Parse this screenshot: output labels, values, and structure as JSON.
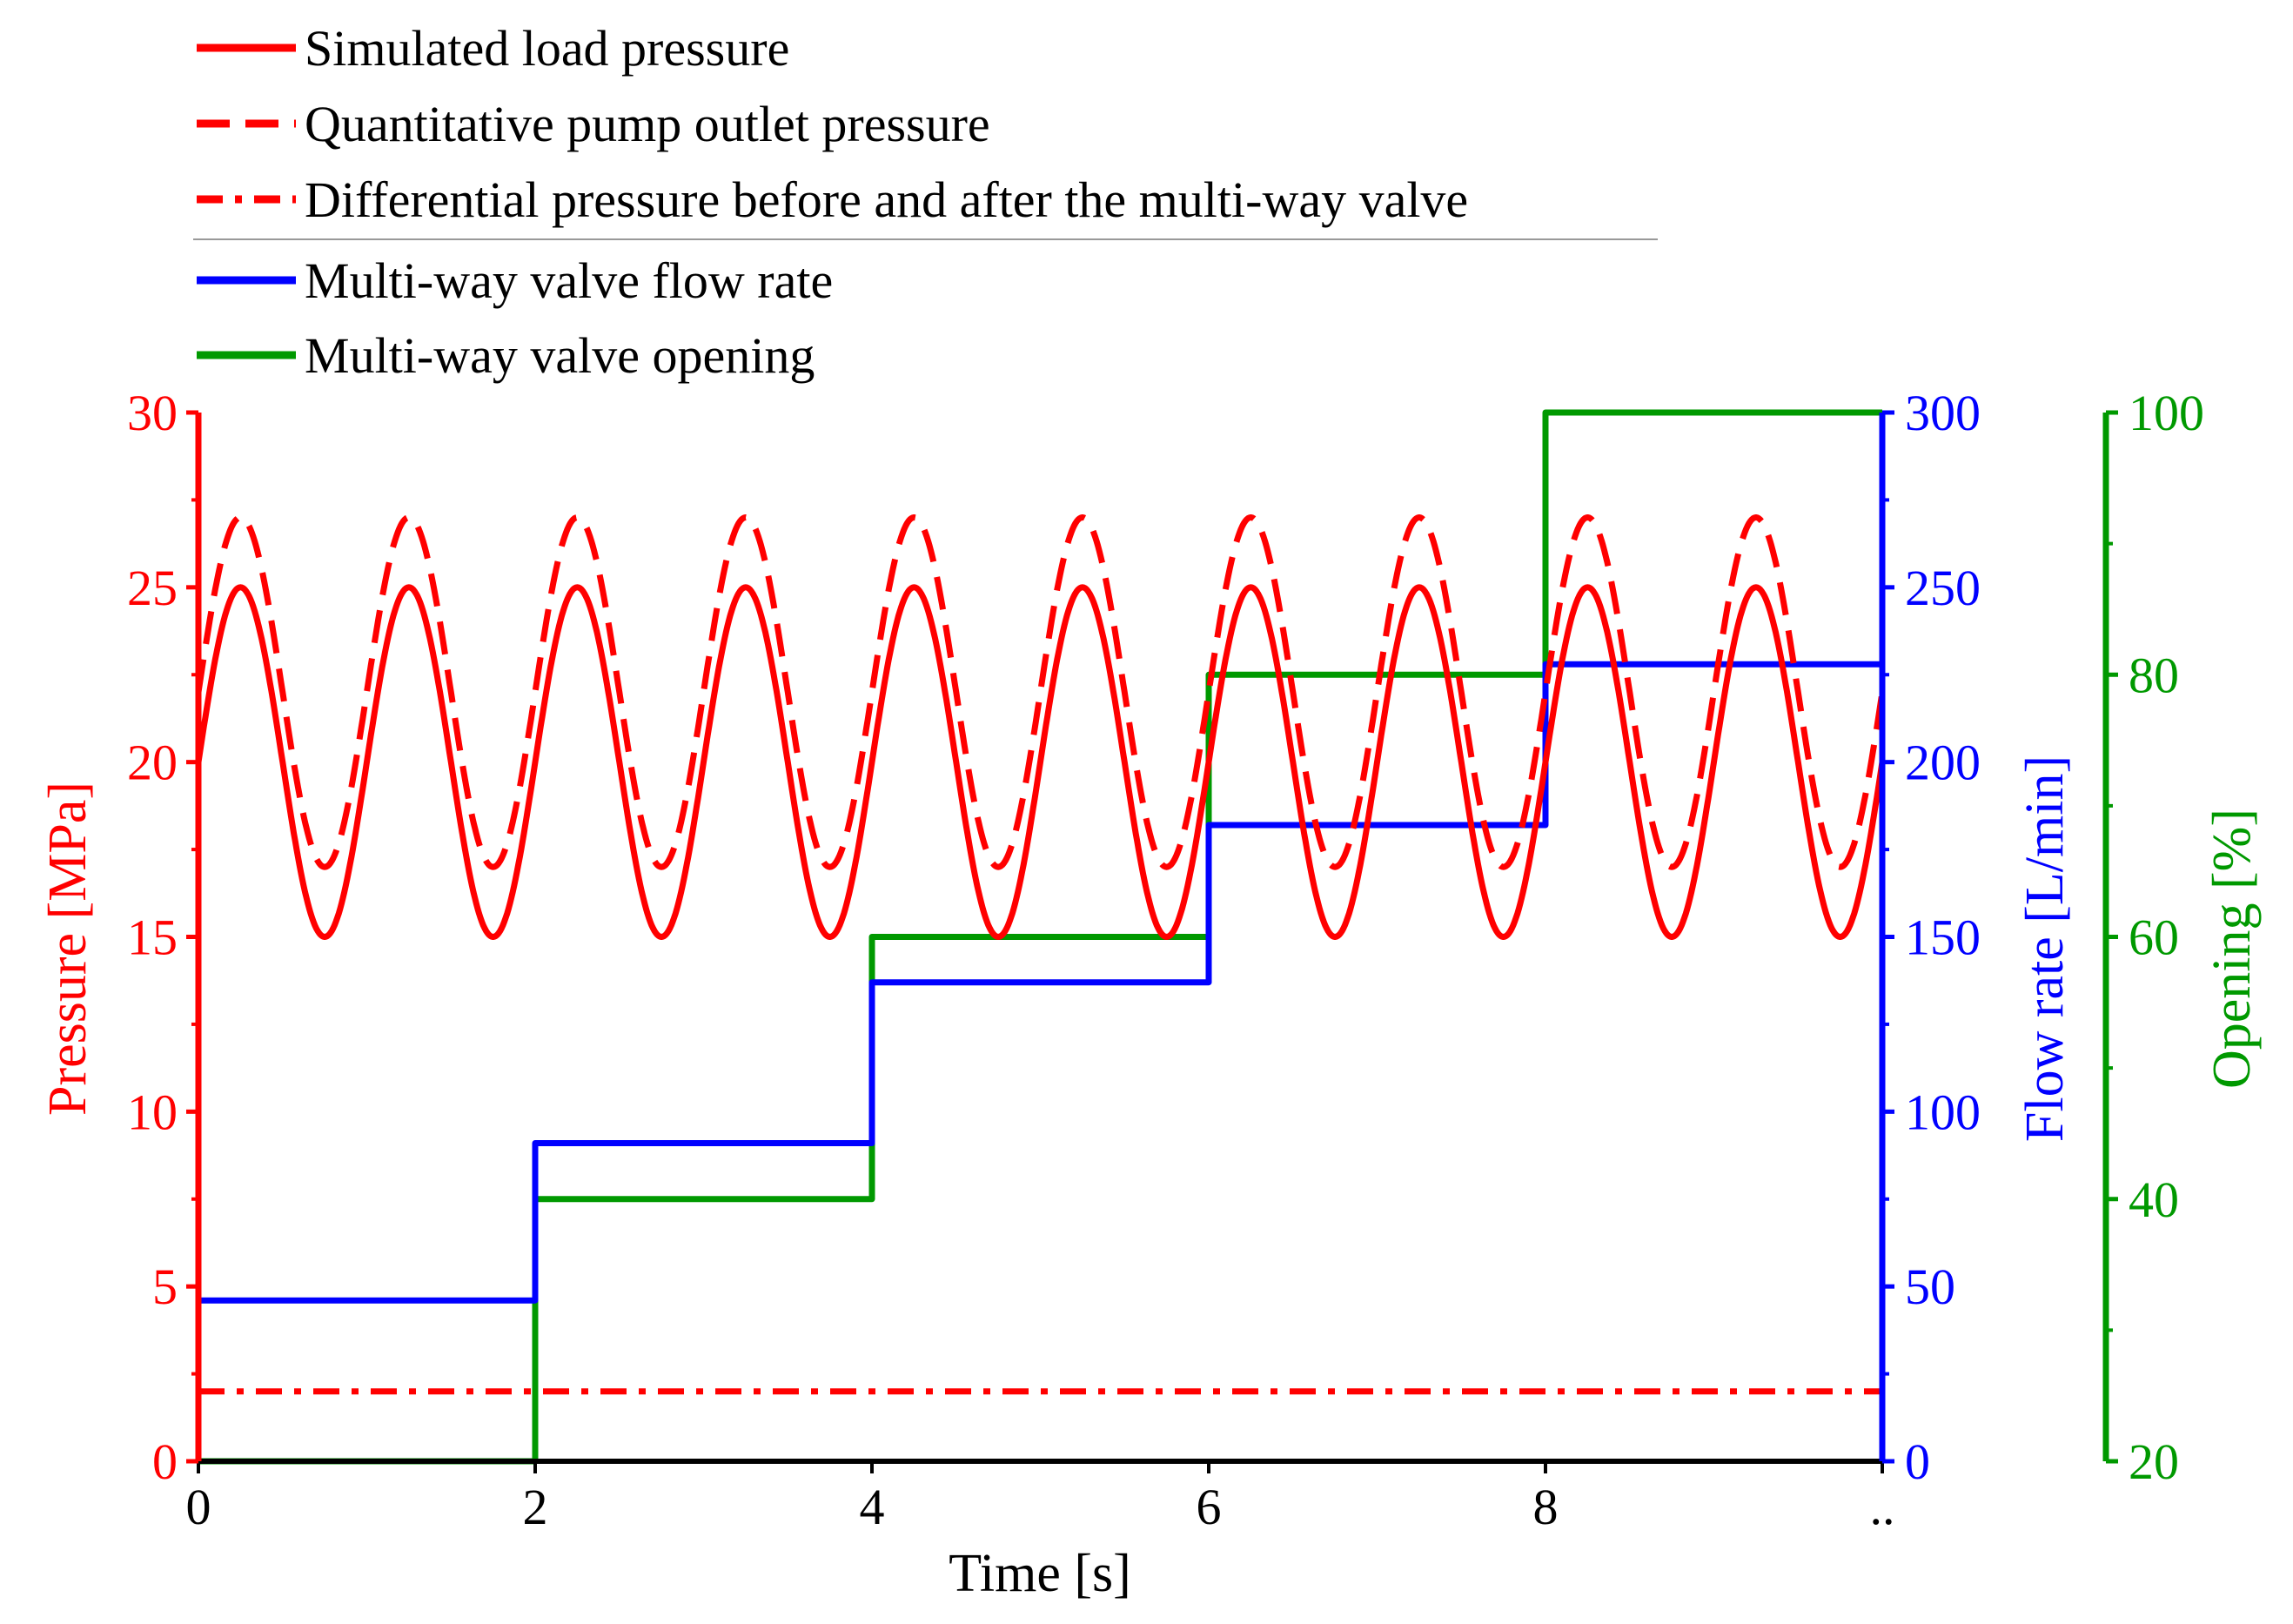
{
  "chart_data": {
    "type": "line",
    "xlabel": "Time [s]",
    "x_ticks": [
      "0",
      "2",
      "4",
      "6",
      "8",
      ".."
    ],
    "xlim": [
      0,
      10
    ],
    "axes": {
      "pressure": {
        "label": "Pressure [MPa]",
        "color": "#ff0000",
        "side": "left",
        "range": [
          0,
          30
        ],
        "ticks": [
          "0",
          "5",
          "10",
          "15",
          "20",
          "25",
          "30"
        ]
      },
      "flow": {
        "label": "Flow rate [L/min]",
        "color": "#0000ff",
        "side": "right",
        "range": [
          0,
          300
        ],
        "ticks": [
          "0",
          "50",
          "100",
          "150",
          "200",
          "250",
          "300"
        ]
      },
      "opening": {
        "label": "Opening [%]",
        "color": "#009900",
        "side": "right-outer",
        "range": [
          20,
          100
        ],
        "ticks": [
          "20",
          "40",
          "60",
          "80",
          "100"
        ]
      }
    },
    "legend": {
      "placement": "top-left",
      "entries": [
        {
          "label": "Simulated load pressure",
          "style": "solid",
          "color": "#ff0000"
        },
        {
          "label": "Quantitative pump outlet pressure",
          "style": "dashed",
          "color": "#ff0000"
        },
        {
          "label": "Differential pressure before and after the multi-way valve",
          "style": "dashdot",
          "color": "#ff0000"
        },
        {
          "label": "Multi-way valve flow rate",
          "style": "solid",
          "color": "#0000ff"
        },
        {
          "label": "Multi-way valve opening",
          "style": "solid",
          "color": "#009900"
        }
      ]
    },
    "series": [
      {
        "name": "Simulated load pressure",
        "axis": "pressure",
        "kind": "sine",
        "mean": 20,
        "amplitude": 5,
        "period_s": 1,
        "phase": 0,
        "x_range": [
          0,
          10
        ]
      },
      {
        "name": "Quantitative pump outlet pressure",
        "axis": "pressure",
        "kind": "sine",
        "mean": 22,
        "amplitude": 5,
        "period_s": 1,
        "phase": 0,
        "x_range": [
          0,
          10
        ]
      },
      {
        "name": "Differential pressure before and after the multi-way valve",
        "axis": "pressure",
        "kind": "points",
        "points": [
          [
            0,
            2
          ],
          [
            10,
            2
          ]
        ]
      },
      {
        "name": "Multi-way valve flow rate",
        "axis": "flow",
        "kind": "steps",
        "steps": [
          [
            0,
            2,
            46
          ],
          [
            2,
            4,
            91
          ],
          [
            4,
            6,
            137
          ],
          [
            6,
            8,
            182
          ],
          [
            8,
            10,
            228
          ]
        ]
      },
      {
        "name": "Multi-way valve opening",
        "axis": "opening",
        "kind": "steps",
        "steps": [
          [
            0,
            2,
            20
          ],
          [
            2,
            4,
            40
          ],
          [
            4,
            6,
            60
          ],
          [
            6,
            8,
            80
          ],
          [
            8,
            10,
            100
          ]
        ]
      }
    ]
  }
}
